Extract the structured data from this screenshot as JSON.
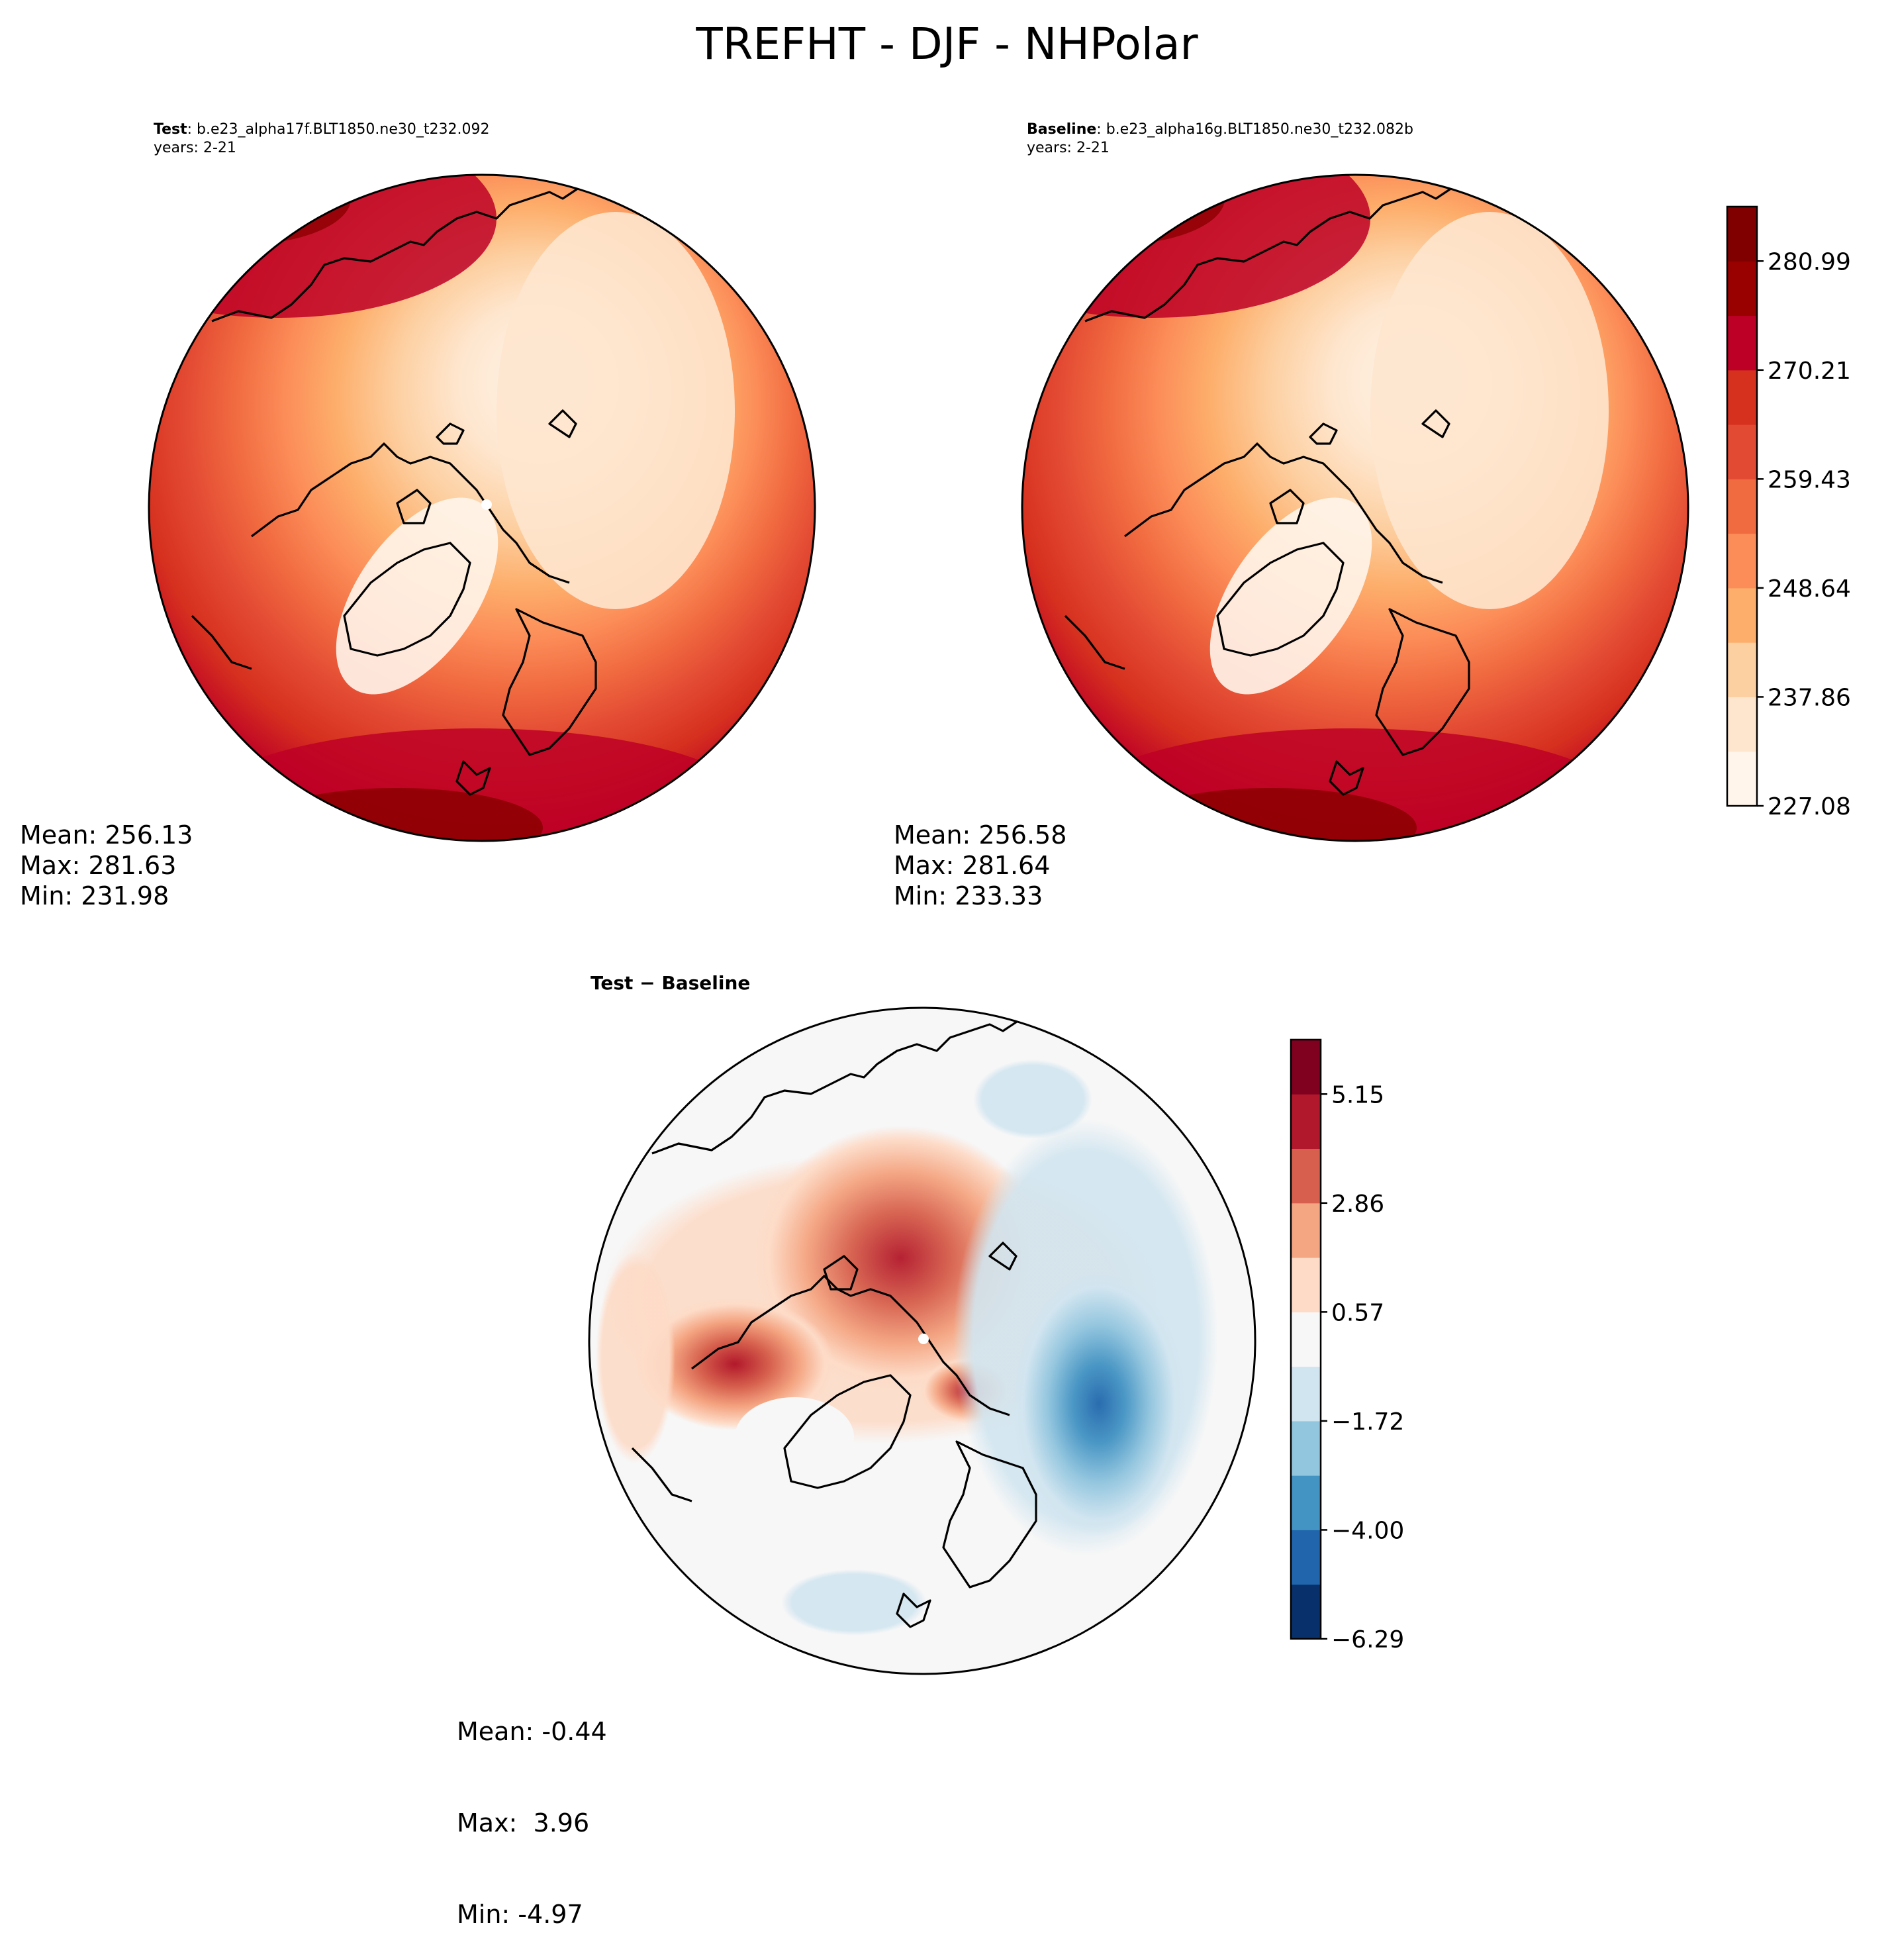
{
  "figure": {
    "title": "TREFHT - DJF - NHPolar"
  },
  "panels": [
    {
      "id": "test",
      "label_bold": "Test",
      "label_rest": ": b.e23_alpha17f.BLT1850.ne30_t232.092",
      "years": "years: 2-21",
      "stats": {
        "mean": "Mean: 256.13",
        "max": "Max: 281.63",
        "min": "Min: 231.98"
      }
    },
    {
      "id": "baseline",
      "label_bold": "Baseline",
      "label_rest": ": b.e23_alpha16g.BLT1850.ne30_t232.082b",
      "years": "years: 2-21",
      "stats": {
        "mean": "Mean: 256.58",
        "max": "Max: 281.64",
        "min": "Min: 233.33"
      }
    },
    {
      "id": "diff",
      "label_bold": "Test − Baseline",
      "label_rest": "",
      "years": "",
      "stats": {
        "mean": "Mean: -0.44",
        "max": "Max:  3.96",
        "min": "Min: -4.97"
      }
    }
  ],
  "colorbars": {
    "main": {
      "tick_labels": [
        "227.08",
        "237.86",
        "248.64",
        "259.43",
        "270.21",
        "280.99"
      ],
      "colors": [
        "#fff5eb",
        "#fee6ce",
        "#fdd0a2",
        "#fdae6b",
        "#fc8d59",
        "#f16b40",
        "#e34a33",
        "#d6301f",
        "#bd0026",
        "#990000",
        "#800000"
      ]
    },
    "diff": {
      "tick_labels": [
        "−6.29",
        "−4.00",
        "−1.72",
        "0.57",
        "2.86",
        "5.15"
      ],
      "colors": [
        "#08306b",
        "#2166ac",
        "#4393c3",
        "#92c5de",
        "#d1e5f0",
        "#f7f7f7",
        "#fddbc7",
        "#f4a582",
        "#d6604d",
        "#b2182b",
        "#800020"
      ]
    }
  }
}
